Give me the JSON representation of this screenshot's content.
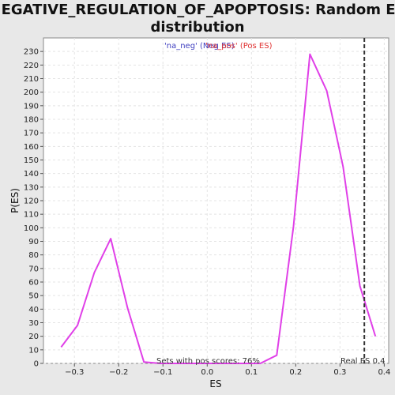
{
  "chart_data": {
    "type": "line",
    "title_line1": "NEGATIVE_REGULATION_OF_APOPTOSIS: Random ES",
    "title_line2": "distribution",
    "xlabel": "ES",
    "ylabel": "P(ES)",
    "xlim": [
      -0.37,
      0.41
    ],
    "ylim": [
      0,
      240
    ],
    "xticks": [
      -0.3,
      -0.2,
      -0.1,
      0.0,
      0.1,
      0.2,
      0.3,
      0.4
    ],
    "xtick_labels": [
      "−0.3",
      "−0.2",
      "−0.1",
      "0.0",
      "0.1",
      "0.2",
      "0.3",
      "0.4"
    ],
    "yticks": [
      0,
      10,
      20,
      30,
      40,
      50,
      60,
      70,
      80,
      90,
      100,
      110,
      120,
      130,
      140,
      150,
      160,
      170,
      180,
      190,
      200,
      210,
      220,
      230
    ],
    "grid": true,
    "legend_position": "top-center",
    "legend": [
      {
        "label": "'na_neg' (Neg ES)",
        "color": "#4040c0"
      },
      {
        "label": "'na_pos' (Pos ES)",
        "color": "#e03030"
      }
    ],
    "series": [
      {
        "color": "#e040e8",
        "x": [
          -0.33,
          -0.293,
          -0.255,
          -0.218,
          -0.18,
          -0.143,
          -0.105,
          -0.068,
          -0.03,
          0.007,
          0.045,
          0.082,
          0.12,
          0.157,
          0.195,
          0.232,
          0.27,
          0.307,
          0.345,
          0.38
        ],
        "y": [
          12,
          28,
          67,
          92,
          41,
          1,
          0,
          0,
          0,
          0,
          0,
          0,
          0,
          6,
          101,
          228,
          201,
          145,
          57,
          20
        ]
      }
    ],
    "real_es": {
      "value": 0.355,
      "label": "Real ES 0.4"
    },
    "annotation": "Sets with pos scores: 76%"
  }
}
